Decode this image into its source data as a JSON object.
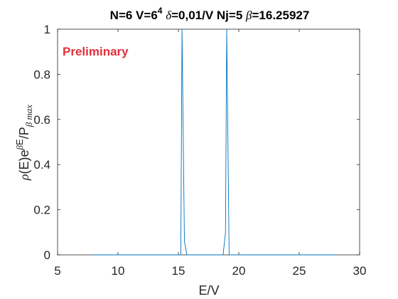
{
  "chart_data": {
    "type": "line",
    "title": {
      "p1": "N=6 V=6",
      "sup": "4",
      "delta": "δ",
      "p2": "=0,01/V Nj=5 ",
      "beta": "β",
      "p3": "=16.25927"
    },
    "xlabel": "E/V",
    "ylabel": {
      "rho": "ρ",
      "p1": "(E)e",
      "sup_beta": "β",
      "sup_e": "E",
      "p2": "/P",
      "sub": "β max"
    },
    "xlim": [
      5,
      30
    ],
    "ylim": [
      0,
      1
    ],
    "xticks": [
      "5",
      "10",
      "15",
      "20",
      "25",
      "30"
    ],
    "yticks": [
      "0",
      "0.2",
      "0.4",
      "0.6",
      "0.8",
      "1"
    ],
    "grid": false,
    "line_color": "#0072BD",
    "annotation": "Preliminary",
    "annotation_color": "#E0313A",
    "series": [
      {
        "x": [
          8.0,
          15.0,
          15.2,
          15.3,
          15.5,
          15.7,
          18.7,
          18.9,
          19.0,
          19.2,
          28.0
        ],
        "y": [
          0,
          0,
          0,
          1,
          0.06,
          0,
          0,
          0.1,
          1,
          0,
          0
        ]
      }
    ]
  }
}
